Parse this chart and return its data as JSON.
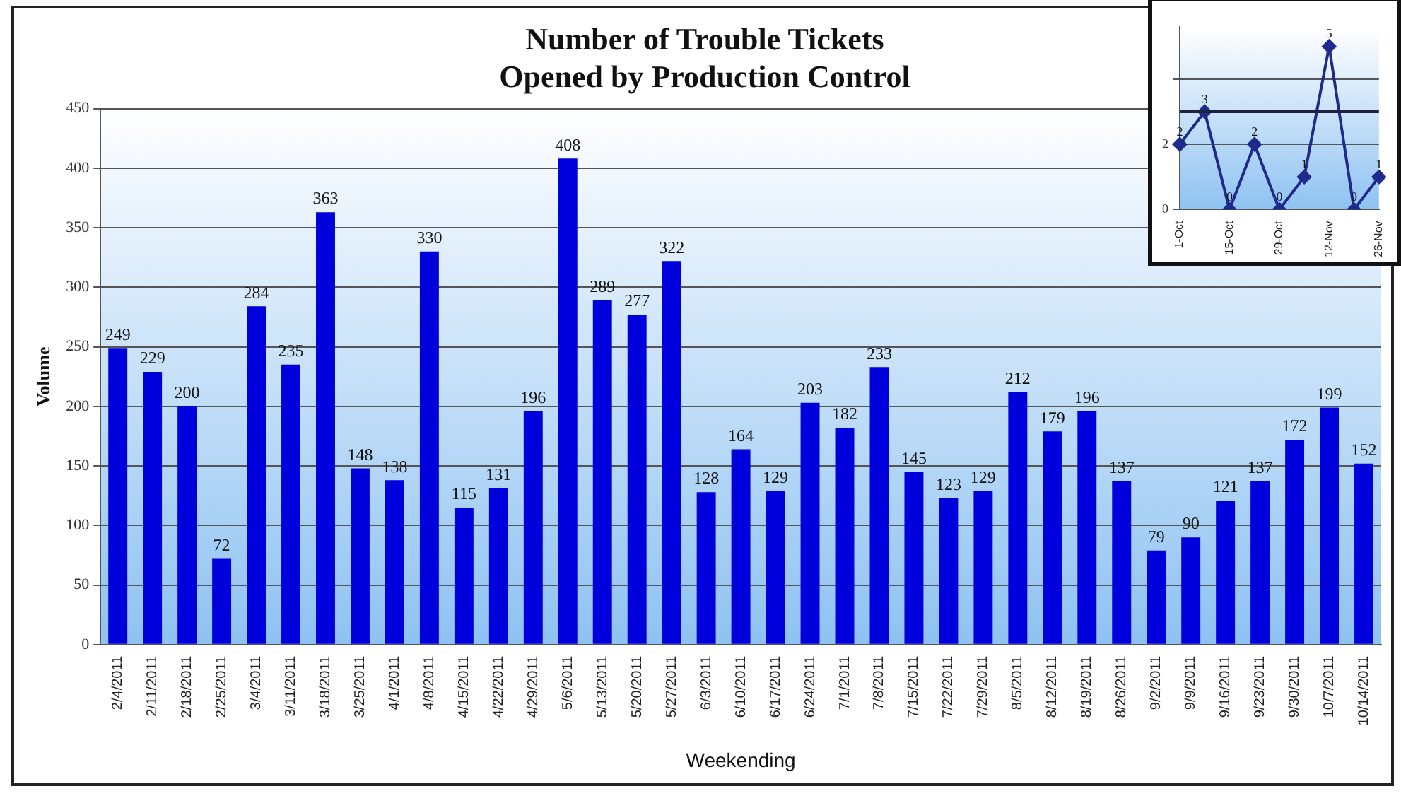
{
  "chart_data": [
    {
      "type": "bar",
      "title": "Number of Trouble Tickets\nOpened by Production Control",
      "xlabel": "Weekending",
      "ylabel": "Volume",
      "categories": [
        "2/4/2011",
        "2/11/2011",
        "2/18/2011",
        "2/25/2011",
        "3/4/2011",
        "3/11/2011",
        "3/18/2011",
        "3/25/2011",
        "4/1/2011",
        "4/8/2011",
        "4/15/2011",
        "4/22/2011",
        "4/29/2011",
        "5/6/2011",
        "5/13/2011",
        "5/20/2011",
        "5/27/2011",
        "6/3/2011",
        "6/10/2011",
        "6/17/2011",
        "6/24/2011",
        "7/1/2011",
        "7/8/2011",
        "7/15/2011",
        "7/22/2011",
        "7/29/2011",
        "8/5/2011",
        "8/12/2011",
        "8/19/2011",
        "8/26/2011",
        "9/2/2011",
        "9/9/2011",
        "9/16/2011",
        "9/23/2011",
        "9/30/2011",
        "10/7/2011",
        "10/14/2011"
      ],
      "values": [
        249,
        229,
        200,
        72,
        284,
        235,
        363,
        148,
        138,
        330,
        115,
        131,
        196,
        408,
        289,
        277,
        322,
        128,
        164,
        129,
        203,
        182,
        233,
        145,
        123,
        129,
        212,
        179,
        196,
        137,
        79,
        90,
        121,
        137,
        172,
        199,
        152
      ],
      "color": "#0000dd",
      "ylim": [
        0,
        450
      ],
      "yticks": [
        0,
        50,
        100,
        150,
        200,
        250,
        300,
        350,
        400,
        450
      ],
      "grid": "y",
      "data_labels": true
    },
    {
      "type": "line",
      "categories": [
        "1-Oct",
        null,
        "15-Oct",
        null,
        "29-Oct",
        null,
        "12-Nov",
        null,
        "26-Nov"
      ],
      "values": [
        2,
        3,
        0,
        2,
        0,
        1,
        5,
        0,
        1
      ],
      "color": "#1f2a8c",
      "marker": "diamond",
      "data_labels": true,
      "ylim": [
        0,
        5.6
      ],
      "yticks": [
        0,
        2,
        {
          "value": 4,
          "label": null
        }
      ],
      "grid": "y",
      "ref_lines": [
        {
          "axis": "y",
          "value": 3,
          "color": "#1a2340"
        }
      ]
    }
  ]
}
